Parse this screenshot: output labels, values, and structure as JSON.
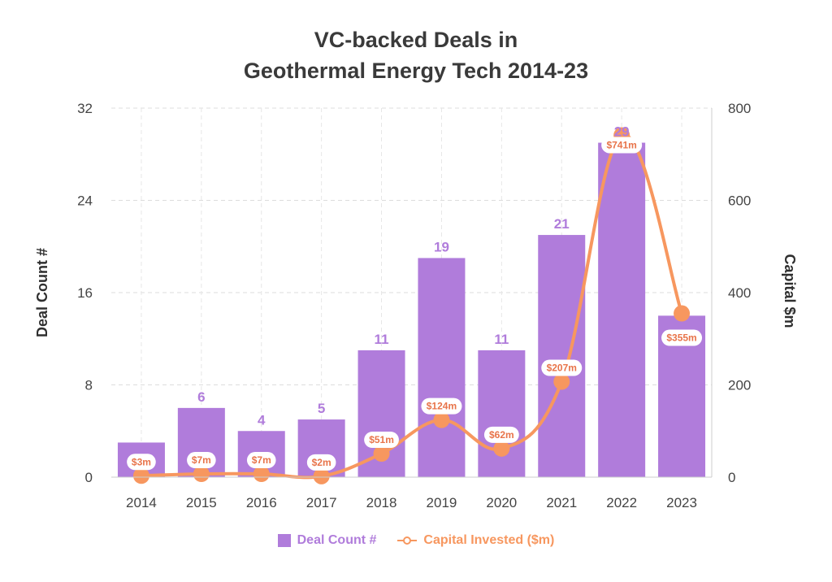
{
  "chart_data": {
    "type": "bar",
    "title_lines": [
      "VC-backed Deals in",
      "Geothermal Energy Tech 2014-23"
    ],
    "categories": [
      "2014",
      "2015",
      "2016",
      "2017",
      "2018",
      "2019",
      "2020",
      "2021",
      "2022",
      "2023"
    ],
    "series": [
      {
        "name": "Deal Count #",
        "type": "bar",
        "axis": "left",
        "values": [
          3,
          6,
          4,
          5,
          11,
          19,
          11,
          21,
          29,
          14
        ],
        "data_labels": [
          "",
          "6",
          "4",
          "5",
          "11",
          "19",
          "11",
          "21",
          "29",
          ""
        ],
        "color": "#B07CDB"
      },
      {
        "name": "Capital Invested ($m)",
        "type": "line",
        "axis": "right",
        "values": [
          3,
          7,
          7,
          2,
          51,
          124,
          62,
          207,
          741,
          355
        ],
        "data_labels": [
          "$3m",
          "$7m",
          "$7m",
          "$2m",
          "$51m",
          "$124m",
          "$62m",
          "$207m",
          "$741m",
          "$355m"
        ],
        "color": "#F7975F"
      }
    ],
    "ylabel_left": "Deal Count #",
    "ylabel_right": "Capital $m",
    "ylim_left": [
      0,
      32
    ],
    "yticks_left": [
      "0",
      "8",
      "16",
      "24",
      "32"
    ],
    "ylim_right": [
      0,
      800
    ],
    "yticks_right": [
      "0",
      "200",
      "400",
      "600",
      "800"
    ],
    "grid": true,
    "legend_position": "bottom-center"
  },
  "legend": {
    "bar_label": "Deal Count #",
    "line_label": "Capital Invested ($m)"
  }
}
